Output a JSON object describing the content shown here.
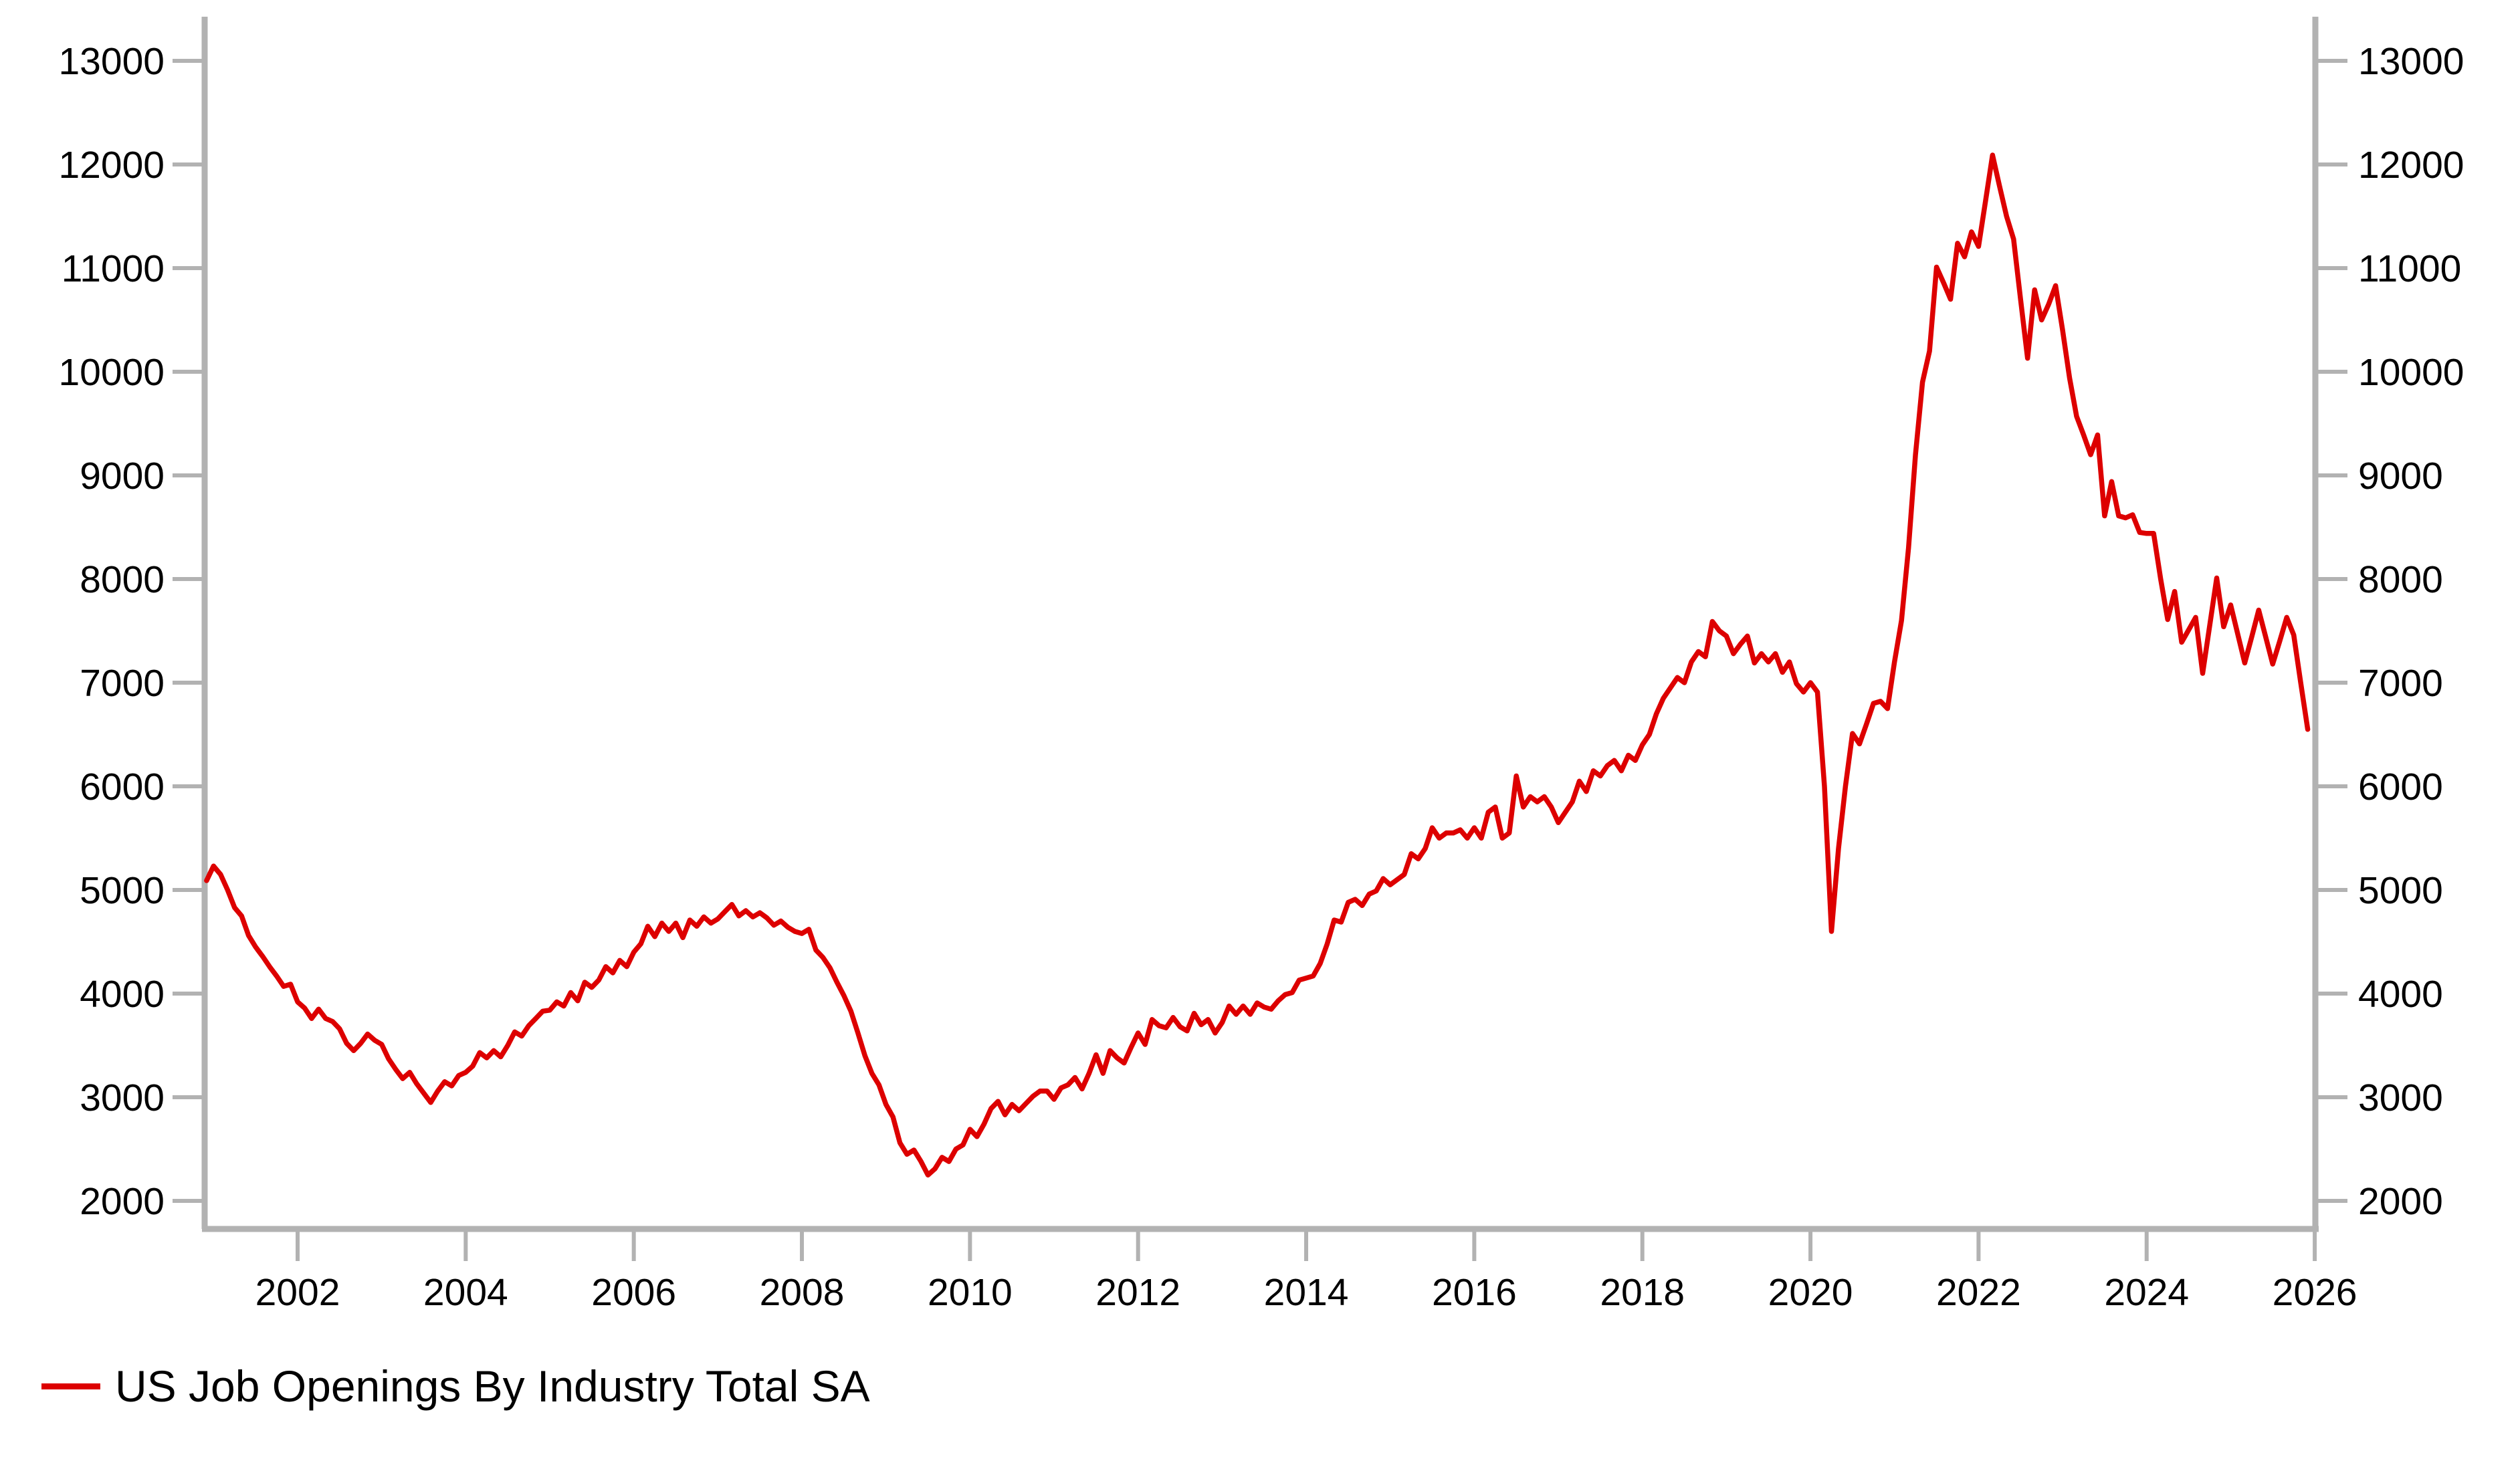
{
  "chart_data": {
    "type": "line",
    "title": "",
    "legend": {
      "position": "bottom-left",
      "label": "US Job Openings By Industry Total SA"
    },
    "colors": {
      "line": "#dd0000",
      "axis": "#b2b2b2",
      "text": "#000000",
      "background": "#ffffff"
    },
    "x_axis": {
      "tick_years": [
        2002,
        2004,
        2006,
        2008,
        2010,
        2012,
        2014,
        2016,
        2018,
        2020,
        2022,
        2024,
        2026
      ],
      "range": [
        2000.89,
        2026.0
      ],
      "grid": false
    },
    "y_axis": {
      "ticks": [
        2000,
        3000,
        4000,
        5000,
        6000,
        7000,
        8000,
        9000,
        10000,
        11000,
        12000,
        13000
      ],
      "range": [
        1720,
        13450
      ],
      "labels_on_left": true,
      "labels_on_right": true,
      "grid": false
    },
    "series": [
      {
        "name": "US Job Openings By Industry Total SA",
        "frequency": "monthly",
        "start_year": 2000,
        "start_month": 12,
        "values": [
          5090,
          5230,
          5150,
          5000,
          4830,
          4750,
          4560,
          4450,
          4360,
          4260,
          4170,
          4070,
          4090,
          3920,
          3860,
          3760,
          3850,
          3760,
          3730,
          3660,
          3520,
          3450,
          3520,
          3610,
          3550,
          3510,
          3370,
          3270,
          3180,
          3240,
          3130,
          3040,
          2950,
          3060,
          3150,
          3110,
          3210,
          3240,
          3300,
          3430,
          3380,
          3450,
          3390,
          3500,
          3630,
          3590,
          3690,
          3760,
          3830,
          3840,
          3920,
          3880,
          4010,
          3930,
          4110,
          4060,
          4130,
          4260,
          4200,
          4320,
          4260,
          4400,
          4480,
          4650,
          4550,
          4680,
          4600,
          4680,
          4540,
          4710,
          4650,
          4740,
          4680,
          4720,
          4790,
          4860,
          4750,
          4800,
          4740,
          4780,
          4730,
          4660,
          4700,
          4640,
          4600,
          4580,
          4620,
          4420,
          4350,
          4250,
          4110,
          3980,
          3830,
          3620,
          3400,
          3230,
          3120,
          2930,
          2810,
          2560,
          2450,
          2490,
          2380,
          2250,
          2310,
          2420,
          2380,
          2500,
          2540,
          2690,
          2620,
          2740,
          2890,
          2960,
          2830,
          2930,
          2870,
          2940,
          3010,
          3060,
          3060,
          2980,
          3090,
          3120,
          3190,
          3080,
          3230,
          3410,
          3230,
          3450,
          3380,
          3330,
          3480,
          3620,
          3510,
          3750,
          3690,
          3670,
          3770,
          3680,
          3640,
          3810,
          3700,
          3750,
          3620,
          3720,
          3880,
          3800,
          3880,
          3800,
          3910,
          3870,
          3850,
          3930,
          3990,
          4010,
          4130,
          4150,
          4170,
          4290,
          4480,
          4710,
          4690,
          4880,
          4910,
          4850,
          4960,
          4990,
          5110,
          5050,
          5100,
          5150,
          5350,
          5300,
          5400,
          5600,
          5500,
          5550,
          5550,
          5580,
          5500,
          5600,
          5500,
          5750,
          5800,
          5500,
          5550,
          6100,
          5800,
          5900,
          5850,
          5900,
          5800,
          5650,
          5750,
          5850,
          6050,
          5950,
          6150,
          6100,
          6200,
          6250,
          6150,
          6300,
          6250,
          6400,
          6500,
          6700,
          6850,
          6950,
          7050,
          7000,
          7200,
          7300,
          7250,
          7590,
          7500,
          7450,
          7280,
          7370,
          7450,
          7190,
          7280,
          7200,
          7280,
          7100,
          7200,
          6990,
          6910,
          7000,
          6910,
          6000,
          4600,
          5400,
          6000,
          6510,
          6410,
          6600,
          6800,
          6820,
          6750,
          7200,
          7600,
          8300,
          9200,
          9900,
          10200,
          11010,
          10860,
          10700,
          11240,
          11110,
          11350,
          11210,
          11650,
          12090,
          11790,
          11500,
          11280,
          10700,
          10130,
          10790,
          10500,
          10650,
          10830,
          10400,
          9940,
          9570,
          9390,
          9200,
          9390,
          8610,
          8940,
          8610,
          8590,
          8620,
          8450,
          8440,
          8440,
          8000,
          7610,
          7880,
          7390,
          7510,
          7630,
          7090,
          7550,
          8010,
          7540,
          7750,
          7470,
          7190,
          7440,
          7700,
          7440,
          7180,
          7400,
          7630,
          7460,
          7000,
          6550
        ]
      }
    ]
  }
}
